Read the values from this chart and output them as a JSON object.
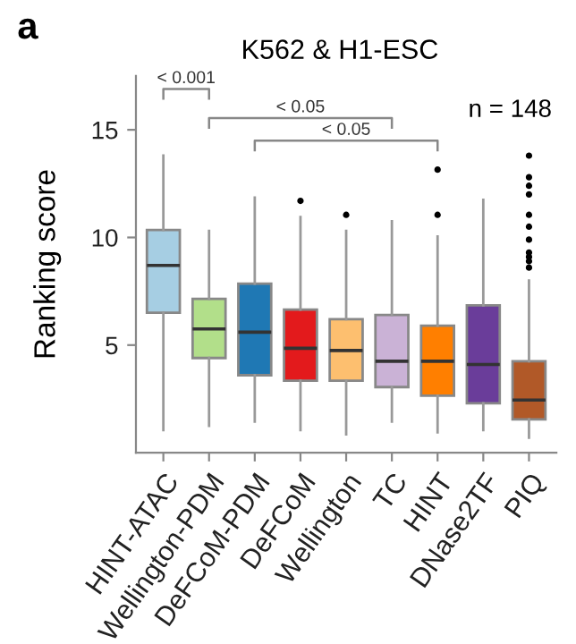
{
  "chart_data": {
    "type": "box",
    "title": "K562 & H1-ESC",
    "ylabel": "Ranking score",
    "categories": [
      "HINT-ATAC",
      "Wellington-PDM",
      "DeFCoM-PDM",
      "DeFCoM",
      "Wellington",
      "TC",
      "HINT",
      "DNase2TF",
      "PIQ"
    ],
    "colors": [
      "#a6cee3",
      "#b2df8a",
      "#1f78b4",
      "#e31a1c",
      "#fdbf6f",
      "#cab2d6",
      "#ff7f00",
      "#6a3d9a",
      "#b15928"
    ],
    "boxes": [
      {
        "low": 1.05,
        "q1": 6.5,
        "median": 8.7,
        "q3": 10.35,
        "high": 13.8
      },
      {
        "low": 1.25,
        "q1": 4.4,
        "median": 5.75,
        "q3": 7.15,
        "high": 10.3
      },
      {
        "low": 1.45,
        "q1": 3.6,
        "median": 5.6,
        "q3": 7.85,
        "high": 11.85
      },
      {
        "low": 1.05,
        "q1": 3.35,
        "median": 4.85,
        "q3": 6.65,
        "high": 10.95,
        "outliers": [
          11.7
        ]
      },
      {
        "low": 0.85,
        "q1": 3.35,
        "median": 4.75,
        "q3": 6.2,
        "high": 10.3,
        "outliers": [
          11.05
        ]
      },
      {
        "low": 1.45,
        "q1": 3.05,
        "median": 4.25,
        "q3": 6.4,
        "high": 10.75
      },
      {
        "low": 0.95,
        "q1": 2.65,
        "median": 4.25,
        "q3": 5.9,
        "high": 10.05,
        "outliers": [
          11.05,
          13.15
        ]
      },
      {
        "low": 1.05,
        "q1": 2.3,
        "median": 4.1,
        "q3": 6.85,
        "high": 11.75
      },
      {
        "low": 0.7,
        "q1": 1.55,
        "median": 2.45,
        "q3": 4.25,
        "high": 8.0,
        "outliers": [
          8.6,
          8.9,
          9.1,
          9.3,
          9.9,
          10.5,
          11.05,
          12.0,
          12.4,
          12.8,
          13.8
        ]
      }
    ],
    "ylim": [
      0,
      17.5
    ],
    "yticks": [
      5,
      10,
      15
    ],
    "grid": false,
    "legend": false,
    "annotations": [
      "a",
      "n = 148",
      "< 0.001",
      "< 0.05",
      "< 0.05"
    ]
  }
}
